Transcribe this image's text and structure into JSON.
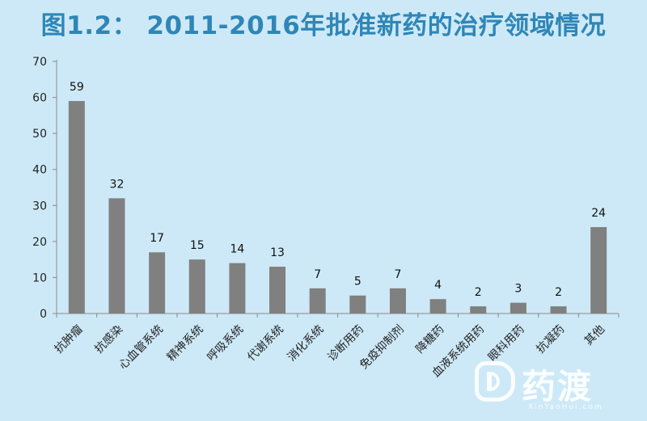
{
  "title": "图1.2： 2011-2016年批准新药的治疗领域情况",
  "watermark": {
    "brand": "药渡",
    "url": "XinYaoHui.com",
    "icon": "yaodu-logo-icon"
  },
  "colors": {
    "background": "#cde9f7",
    "title": "#2f86b7",
    "bar": "#808080",
    "axis": "#8a8a8a"
  },
  "chart_data": {
    "type": "bar",
    "title": "图1.2： 2011-2016年批准新药的治疗领域情况",
    "xlabel": "",
    "ylabel": "",
    "categories": [
      "抗肿瘤",
      "抗感染",
      "心血管系统",
      "精神系统",
      "呼吸系统",
      "代谢系统",
      "消化系统",
      "诊断用药",
      "免疫抑制剂",
      "降糖药",
      "血液系统用药",
      "眼科用药",
      "抗凝药",
      "其他"
    ],
    "values": [
      59,
      32,
      17,
      15,
      14,
      13,
      7,
      5,
      7,
      4,
      2,
      3,
      2,
      24
    ],
    "ylim": [
      0,
      70
    ],
    "yticks": [
      0,
      10,
      20,
      30,
      40,
      50,
      60,
      70
    ],
    "data_labels": true,
    "grid": false,
    "legend": "none"
  }
}
